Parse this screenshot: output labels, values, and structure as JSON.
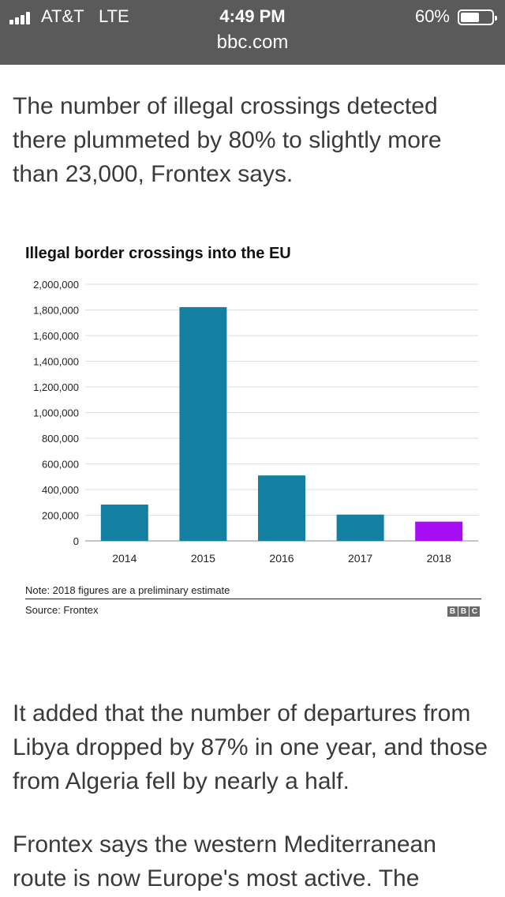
{
  "status_bar": {
    "carrier": "AT&T",
    "network": "LTE",
    "time": "4:49 PM",
    "battery_percent": "60%",
    "battery_level": 0.6
  },
  "browser": {
    "url": "bbc.com"
  },
  "article": {
    "para1": "The number of illegal crossings detected there plummeted by 80% to slightly more than 23,000, Frontex says.",
    "para2": "It added that the number of departures from Libya dropped by 87% in one year, and those from Algeria fell by nearly a half.",
    "para3": "Frontex says the western Mediterranean route is now Europe's most active. The"
  },
  "chart_data": {
    "type": "bar",
    "title": "Illegal border crossings into the EU",
    "categories": [
      "2014",
      "2015",
      "2016",
      "2017",
      "2018"
    ],
    "values": [
      283000,
      1822000,
      510000,
      205000,
      150000
    ],
    "colors": [
      "#1380a1",
      "#1380a1",
      "#1380a1",
      "#1380a1",
      "#a50df2"
    ],
    "ylim": [
      0,
      2000000
    ],
    "yticks": [
      0,
      200000,
      400000,
      600000,
      800000,
      1000000,
      1200000,
      1400000,
      1600000,
      1800000,
      2000000
    ],
    "ytick_labels": [
      "0",
      "200,000",
      "400,000",
      "600,000",
      "800,000",
      "1,000,000",
      "1,200,000",
      "1,400,000",
      "1,600,000",
      "1,800,000",
      "2,000,000"
    ],
    "grid": true,
    "xlabel": "",
    "ylabel": "",
    "note": "Note: 2018 figures are a preliminary estimate",
    "source": "Source: Frontex"
  },
  "logo": {
    "letters": [
      "B",
      "B",
      "C"
    ]
  }
}
